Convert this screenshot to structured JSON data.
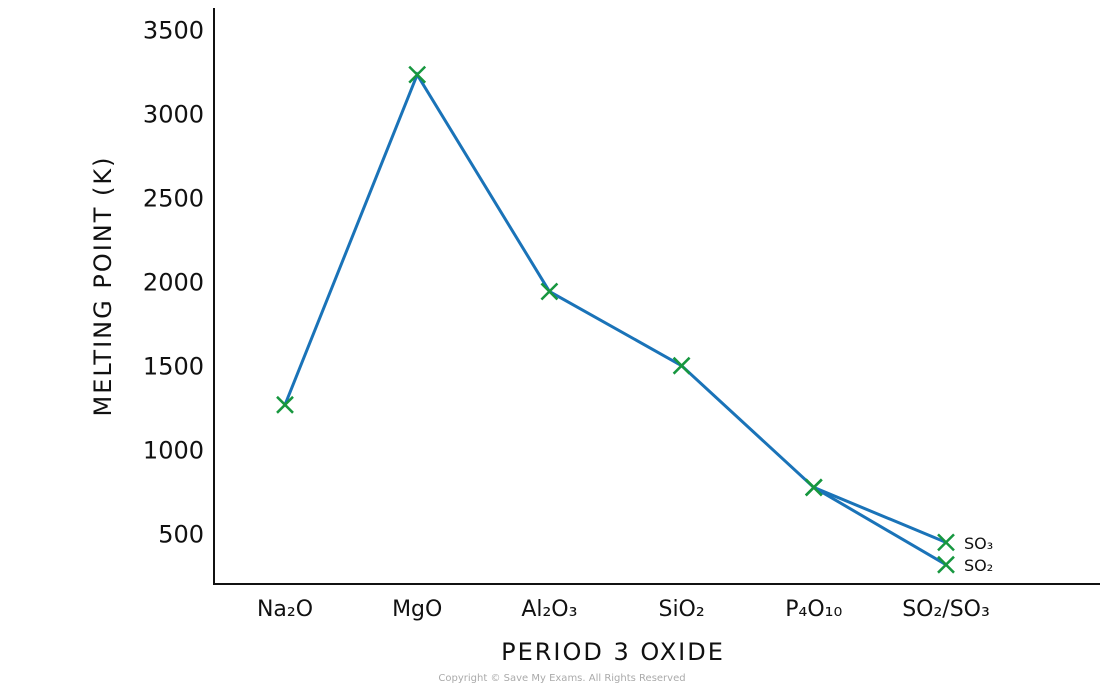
{
  "chart_data": {
    "type": "line",
    "x_label": "PERIOD 3 OXIDE",
    "y_label": "MELTING POINT (K)",
    "categories": [
      "Na₂O",
      "MgO",
      "Al₂O₃",
      "SiO₂",
      "P₄O₁₀",
      "SO₂/SO₃"
    ],
    "series": [
      {
        "name": "SO₃",
        "color": "#1a73b8",
        "marker_color": "#17973f",
        "values": [
          1277,
          3243,
          1952,
          1510,
          785,
          458
        ]
      },
      {
        "name": "SO₂",
        "color": "#1a73b8",
        "marker_color": "#17973f",
        "values": [
          null,
          null,
          null,
          null,
          785,
          325
        ]
      }
    ],
    "ylim": [
      210,
      3640
    ],
    "yticks": [
      500,
      1000,
      1500,
      2000,
      2500,
      3000,
      3500
    ],
    "grid": false,
    "footer": "Copyright © Save My Exams. All Rights Reserved"
  }
}
